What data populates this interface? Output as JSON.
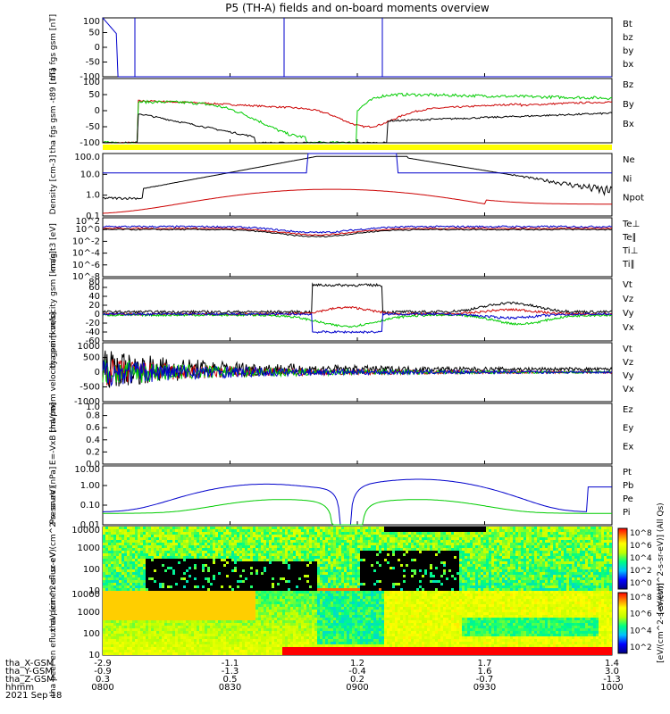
{
  "title": "P5 (TH-A) fields and on-board moments overview",
  "footer": {
    "row_labels": [
      "tha_X-GSM",
      "tha_Y-GSM",
      "tha_Z-GSM",
      "hhmm",
      "2021 Sep 18"
    ],
    "columns": [
      [
        "-2.9",
        "-0.9",
        "0.3",
        "0800"
      ],
      [
        "-1.1",
        "-1.3",
        "0.5",
        "0830"
      ],
      [
        "1.2",
        "-0.4",
        "0.2",
        "0900"
      ],
      [
        "1.7",
        "1.6",
        "-0.7",
        "0930"
      ],
      [
        "1.4",
        "3.0",
        "-1.3",
        "1000"
      ]
    ]
  },
  "colorbars": [
    {
      "label": "[eV/(cm^2-s-sr-eV)] (All Qs)",
      "ticks": [
        "10^8",
        "10^6",
        "10^4",
        "10^2",
        "10^0"
      ]
    },
    {
      "label": "[eV/(cm^2-s-sr-eV)]",
      "ticks": [
        "10^8",
        "10^6",
        "10^4",
        "10^2"
      ]
    }
  ],
  "chart_data": [
    {
      "type": "line",
      "id": "fgs",
      "ylabel": "tha fgs gsm [nT]",
      "ylim": [
        -100,
        100
      ],
      "yticks": [
        "100",
        "50",
        "0",
        "-50",
        "-100"
      ],
      "legend": [
        {
          "name": "Bt",
          "color": "#000000"
        },
        {
          "name": "bz",
          "color": "#cc0000"
        },
        {
          "name": "by",
          "color": "#00cc00"
        },
        {
          "name": "bx",
          "color": "#0000cc"
        }
      ]
    },
    {
      "type": "line",
      "id": "fgs_t89",
      "ylabel": "tha fgs gsm -t89 [nT]",
      "ylim": [
        -120,
        100
      ],
      "yticks": [
        "100",
        "50",
        "0",
        "-50",
        "-100"
      ],
      "legend": [
        {
          "name": "Bz",
          "color": "#cc0000"
        },
        {
          "name": "By",
          "color": "#00cc00"
        },
        {
          "name": "Bx",
          "color": "#000000"
        }
      ]
    },
    {
      "type": "line",
      "id": "density",
      "ylabel": "Density [cm-3]",
      "ylim": [
        0.05,
        300
      ],
      "log": true,
      "yticks": [
        "100.0",
        "10.0",
        "1.0",
        "0.1"
      ],
      "legend": [
        {
          "name": "Ne",
          "color": "#cc0000"
        },
        {
          "name": "Ni",
          "color": "#000000"
        },
        {
          "name": "Npot",
          "color": "#0000cc"
        }
      ]
    },
    {
      "type": "line",
      "id": "temp",
      "ylabel": "mag t3 [eV]",
      "log": true,
      "yticks": [
        "10^2",
        "10^0",
        "10^-2",
        "10^-4",
        "10^-6",
        "10^-8"
      ],
      "legend": [
        {
          "name": "Te⊥",
          "color": "#cc0000"
        },
        {
          "name": "Te∥",
          "color": "#000000"
        },
        {
          "name": "Ti⊥",
          "color": "#0000cc"
        },
        {
          "name": "Ti∥",
          "color": "#00cc00"
        }
      ]
    },
    {
      "type": "line",
      "id": "peim",
      "ylabel": "tha peim velocity gsm [km/s]",
      "ylim": [
        -60,
        80
      ],
      "yticks": [
        "80",
        "60",
        "40",
        "20",
        "0",
        "-20",
        "-40",
        "-60"
      ],
      "legend": [
        {
          "name": "Vt",
          "color": "#000000"
        },
        {
          "name": "Vz",
          "color": "#cc0000"
        },
        {
          "name": "Vy",
          "color": "#00cc00"
        },
        {
          "name": "Vx",
          "color": "#0000cc"
        }
      ]
    },
    {
      "type": "line",
      "id": "peem",
      "ylabel": "tha peem velocity gsm [km/s]",
      "ylim": [
        -1000,
        1000
      ],
      "yticks": [
        "1000",
        "500",
        "0",
        "-500",
        "-1000"
      ],
      "legend": [
        {
          "name": "Vt",
          "color": "#000000"
        },
        {
          "name": "Vz",
          "color": "#cc0000"
        },
        {
          "name": "Vy",
          "color": "#00cc00"
        },
        {
          "name": "Vx",
          "color": "#0000cc"
        }
      ]
    },
    {
      "type": "line",
      "id": "efield",
      "ylabel": "E=-VxB [mV/m]",
      "ylim": [
        0,
        1
      ],
      "yticks": [
        "1.0",
        "0.8",
        "0.6",
        "0.4",
        "0.2",
        "0.0"
      ],
      "legend": [
        {
          "name": "Ez",
          "color": "#cc0000"
        },
        {
          "name": "Ey",
          "color": "#00cc00"
        },
        {
          "name": "Ex",
          "color": "#0000cc"
        }
      ]
    },
    {
      "type": "line",
      "id": "pressure",
      "ylabel": "Pressure [nPa]",
      "log": true,
      "yticks": [
        "10.00",
        "1.00",
        "0.10",
        "0.01"
      ],
      "legend": [
        {
          "name": "Pt",
          "color": "#000000"
        },
        {
          "name": "Pb",
          "color": "#cc0000"
        },
        {
          "name": "Pe",
          "color": "#00cc00"
        },
        {
          "name": "Pi",
          "color": "#0000cc"
        }
      ]
    },
    {
      "type": "heatmap",
      "id": "peir",
      "ylabel": "tha peir en eflux eV (cm^2-s- sr-eV)",
      "log": true,
      "yticks": [
        "10000",
        "1000",
        "100",
        "10"
      ]
    },
    {
      "type": "heatmap",
      "id": "peer",
      "ylabel": "tha peer en eflux eV (cm^2-s- sr-eV)",
      "log": true,
      "yticks": [
        "10000",
        "1000",
        "100",
        "10"
      ]
    }
  ]
}
